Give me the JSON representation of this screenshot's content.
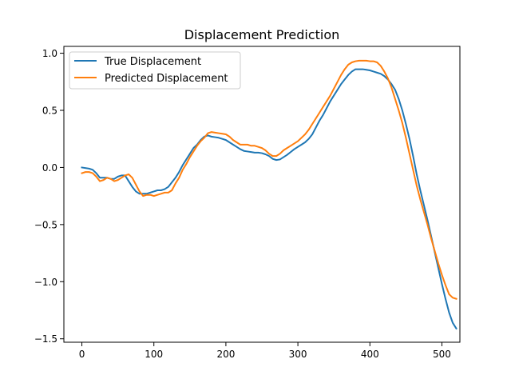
{
  "chart_data": {
    "type": "line",
    "title": "Displacement Prediction",
    "xlabel": "",
    "ylabel": "",
    "xlim": [
      -25,
      525
    ],
    "ylim": [
      -1.53,
      1.06
    ],
    "xticks": [
      0,
      100,
      200,
      300,
      400,
      500
    ],
    "xtick_labels": [
      "0",
      "100",
      "200",
      "300",
      "400",
      "500"
    ],
    "yticks": [
      -1.5,
      -1.0,
      -0.5,
      0.0,
      0.5,
      1.0
    ],
    "ytick_labels": [
      "−1.5",
      "−1.0",
      "−0.5",
      "0.0",
      "0.5",
      "1.0"
    ],
    "grid": false,
    "legend_position": "top-left",
    "series": [
      {
        "name": "True Displacement",
        "color": "#1f77b4",
        "points": [
          [
            0,
            0.0
          ],
          [
            10,
            -0.01
          ],
          [
            15,
            -0.02
          ],
          [
            20,
            -0.05
          ],
          [
            25,
            -0.09
          ],
          [
            30,
            -0.09
          ],
          [
            35,
            -0.09
          ],
          [
            40,
            -0.1
          ],
          [
            45,
            -0.1
          ],
          [
            50,
            -0.08
          ],
          [
            55,
            -0.07
          ],
          [
            60,
            -0.07
          ],
          [
            65,
            -0.12
          ],
          [
            70,
            -0.17
          ],
          [
            75,
            -0.21
          ],
          [
            80,
            -0.23
          ],
          [
            85,
            -0.23
          ],
          [
            90,
            -0.23
          ],
          [
            95,
            -0.22
          ],
          [
            100,
            -0.21
          ],
          [
            105,
            -0.2
          ],
          [
            110,
            -0.2
          ],
          [
            115,
            -0.19
          ],
          [
            120,
            -0.17
          ],
          [
            125,
            -0.13
          ],
          [
            130,
            -0.09
          ],
          [
            135,
            -0.04
          ],
          [
            140,
            0.02
          ],
          [
            145,
            0.07
          ],
          [
            150,
            0.12
          ],
          [
            155,
            0.17
          ],
          [
            160,
            0.2
          ],
          [
            165,
            0.24
          ],
          [
            170,
            0.27
          ],
          [
            175,
            0.28
          ],
          [
            180,
            0.27
          ],
          [
            185,
            0.265
          ],
          [
            190,
            0.26
          ],
          [
            195,
            0.25
          ],
          [
            200,
            0.24
          ],
          [
            205,
            0.22
          ],
          [
            210,
            0.2
          ],
          [
            215,
            0.18
          ],
          [
            220,
            0.16
          ],
          [
            225,
            0.145
          ],
          [
            230,
            0.14
          ],
          [
            235,
            0.135
          ],
          [
            240,
            0.13
          ],
          [
            245,
            0.13
          ],
          [
            250,
            0.125
          ],
          [
            255,
            0.115
          ],
          [
            260,
            0.1
          ],
          [
            265,
            0.075
          ],
          [
            270,
            0.065
          ],
          [
            275,
            0.07
          ],
          [
            280,
            0.09
          ],
          [
            285,
            0.11
          ],
          [
            290,
            0.135
          ],
          [
            295,
            0.16
          ],
          [
            300,
            0.18
          ],
          [
            305,
            0.2
          ],
          [
            310,
            0.22
          ],
          [
            315,
            0.25
          ],
          [
            320,
            0.29
          ],
          [
            325,
            0.35
          ],
          [
            330,
            0.41
          ],
          [
            335,
            0.46
          ],
          [
            340,
            0.52
          ],
          [
            345,
            0.58
          ],
          [
            350,
            0.63
          ],
          [
            355,
            0.68
          ],
          [
            360,
            0.73
          ],
          [
            365,
            0.77
          ],
          [
            370,
            0.81
          ],
          [
            375,
            0.84
          ],
          [
            380,
            0.86
          ],
          [
            390,
            0.86
          ],
          [
            395,
            0.855
          ],
          [
            400,
            0.85
          ],
          [
            405,
            0.84
          ],
          [
            410,
            0.83
          ],
          [
            415,
            0.82
          ],
          [
            420,
            0.8
          ],
          [
            425,
            0.77
          ],
          [
            430,
            0.73
          ],
          [
            435,
            0.68
          ],
          [
            440,
            0.6
          ],
          [
            445,
            0.5
          ],
          [
            450,
            0.38
          ],
          [
            455,
            0.25
          ],
          [
            460,
            0.1
          ],
          [
            465,
            -0.06
          ],
          [
            470,
            -0.2
          ],
          [
            475,
            -0.33
          ],
          [
            480,
            -0.46
          ],
          [
            485,
            -0.6
          ],
          [
            490,
            -0.74
          ],
          [
            495,
            -0.88
          ],
          [
            500,
            -1.02
          ],
          [
            505,
            -1.15
          ],
          [
            510,
            -1.27
          ],
          [
            515,
            -1.36
          ],
          [
            520,
            -1.41
          ]
        ]
      },
      {
        "name": "Predicted Displacement",
        "color": "#ff7f0e",
        "points": [
          [
            0,
            -0.05
          ],
          [
            5,
            -0.04
          ],
          [
            10,
            -0.04
          ],
          [
            15,
            -0.05
          ],
          [
            20,
            -0.08
          ],
          [
            25,
            -0.12
          ],
          [
            30,
            -0.11
          ],
          [
            35,
            -0.09
          ],
          [
            40,
            -0.1
          ],
          [
            45,
            -0.12
          ],
          [
            50,
            -0.11
          ],
          [
            55,
            -0.09
          ],
          [
            60,
            -0.07
          ],
          [
            65,
            -0.06
          ],
          [
            70,
            -0.09
          ],
          [
            75,
            -0.15
          ],
          [
            80,
            -0.21
          ],
          [
            85,
            -0.25
          ],
          [
            90,
            -0.24
          ],
          [
            95,
            -0.24
          ],
          [
            100,
            -0.25
          ],
          [
            105,
            -0.24
          ],
          [
            110,
            -0.23
          ],
          [
            115,
            -0.22
          ],
          [
            120,
            -0.22
          ],
          [
            125,
            -0.2
          ],
          [
            130,
            -0.14
          ],
          [
            135,
            -0.09
          ],
          [
            140,
            -0.02
          ],
          [
            145,
            0.03
          ],
          [
            150,
            0.09
          ],
          [
            155,
            0.14
          ],
          [
            160,
            0.19
          ],
          [
            165,
            0.23
          ],
          [
            170,
            0.26
          ],
          [
            175,
            0.3
          ],
          [
            180,
            0.31
          ],
          [
            185,
            0.305
          ],
          [
            190,
            0.3
          ],
          [
            195,
            0.295
          ],
          [
            200,
            0.29
          ],
          [
            205,
            0.27
          ],
          [
            210,
            0.24
          ],
          [
            215,
            0.22
          ],
          [
            220,
            0.2
          ],
          [
            225,
            0.2
          ],
          [
            230,
            0.2
          ],
          [
            235,
            0.19
          ],
          [
            240,
            0.19
          ],
          [
            245,
            0.18
          ],
          [
            250,
            0.17
          ],
          [
            255,
            0.15
          ],
          [
            260,
            0.12
          ],
          [
            265,
            0.1
          ],
          [
            270,
            0.1
          ],
          [
            275,
            0.12
          ],
          [
            280,
            0.15
          ],
          [
            285,
            0.17
          ],
          [
            290,
            0.19
          ],
          [
            295,
            0.21
          ],
          [
            300,
            0.23
          ],
          [
            305,
            0.26
          ],
          [
            310,
            0.29
          ],
          [
            315,
            0.33
          ],
          [
            320,
            0.38
          ],
          [
            325,
            0.43
          ],
          [
            330,
            0.48
          ],
          [
            335,
            0.53
          ],
          [
            340,
            0.58
          ],
          [
            345,
            0.63
          ],
          [
            350,
            0.69
          ],
          [
            355,
            0.75
          ],
          [
            360,
            0.81
          ],
          [
            365,
            0.86
          ],
          [
            370,
            0.9
          ],
          [
            375,
            0.92
          ],
          [
            380,
            0.93
          ],
          [
            385,
            0.935
          ],
          [
            390,
            0.935
          ],
          [
            395,
            0.935
          ],
          [
            400,
            0.93
          ],
          [
            405,
            0.93
          ],
          [
            410,
            0.92
          ],
          [
            415,
            0.89
          ],
          [
            420,
            0.84
          ],
          [
            425,
            0.78
          ],
          [
            430,
            0.7
          ],
          [
            435,
            0.6
          ],
          [
            440,
            0.5
          ],
          [
            445,
            0.39
          ],
          [
            450,
            0.26
          ],
          [
            455,
            0.12
          ],
          [
            460,
            -0.02
          ],
          [
            465,
            -0.16
          ],
          [
            470,
            -0.28
          ],
          [
            475,
            -0.39
          ],
          [
            480,
            -0.5
          ],
          [
            485,
            -0.62
          ],
          [
            490,
            -0.73
          ],
          [
            495,
            -0.84
          ],
          [
            500,
            -0.94
          ],
          [
            505,
            -1.03
          ],
          [
            510,
            -1.11
          ],
          [
            515,
            -1.14
          ],
          [
            520,
            -1.15
          ]
        ]
      }
    ]
  }
}
